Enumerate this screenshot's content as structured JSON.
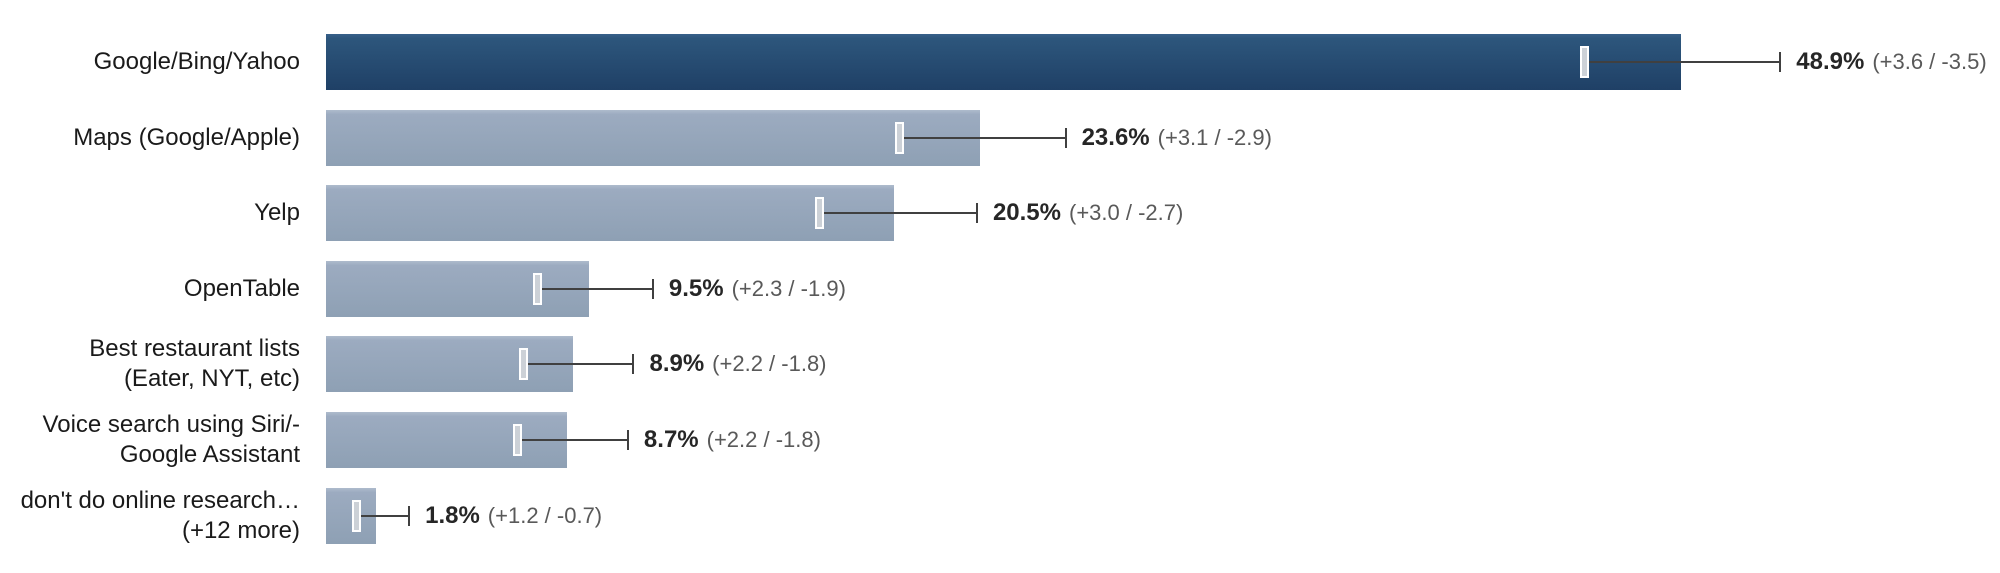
{
  "chart_data": {
    "type": "bar",
    "orientation": "horizontal",
    "title": "",
    "xlabel": "",
    "ylabel": "",
    "xlim": [
      0,
      60.5
    ],
    "grid": false,
    "legend": false,
    "units": "%",
    "categories": [
      "Google/Bing/Yahoo",
      "Maps (Google/Apple)",
      "Yelp",
      "OpenTable",
      "Best restaurant lists (Eater, NYT, etc)",
      "Voice search using Siri/- Google Assistant",
      "don't do online research… (+12 more)"
    ],
    "values": [
      48.9,
      23.6,
      20.5,
      9.5,
      8.9,
      8.7,
      1.8
    ],
    "error_plus": [
      3.6,
      3.1,
      3.0,
      2.3,
      2.2,
      2.2,
      1.2
    ],
    "error_minus": [
      3.5,
      2.9,
      2.7,
      1.9,
      1.8,
      1.8,
      0.7
    ],
    "rows": [
      {
        "label_lines": [
          "Google/Bing/Yahoo"
        ],
        "value": 48.9,
        "plus": 3.6,
        "minus": 3.5,
        "value_label": "48.9%",
        "ci_label": "(+3.6 / -3.5)",
        "emphasis": "primary"
      },
      {
        "label_lines": [
          "Maps (Google/Apple)"
        ],
        "value": 23.6,
        "plus": 3.1,
        "minus": 2.9,
        "value_label": "23.6%",
        "ci_label": "(+3.1 / -2.9)",
        "emphasis": "secondary"
      },
      {
        "label_lines": [
          "Yelp"
        ],
        "value": 20.5,
        "plus": 3.0,
        "minus": 2.7,
        "value_label": "20.5%",
        "ci_label": "(+3.0 / -2.7)",
        "emphasis": "secondary"
      },
      {
        "label_lines": [
          "OpenTable"
        ],
        "value": 9.5,
        "plus": 2.3,
        "minus": 1.9,
        "value_label": "9.5%",
        "ci_label": "(+2.3 / -1.9)",
        "emphasis": "secondary"
      },
      {
        "label_lines": [
          "Best restaurant lists",
          "(Eater, NYT, etc)"
        ],
        "value": 8.9,
        "plus": 2.2,
        "minus": 1.8,
        "value_label": "8.9%",
        "ci_label": "(+2.2 / -1.8)",
        "emphasis": "secondary"
      },
      {
        "label_lines": [
          "Voice search using Siri/-",
          "Google Assistant"
        ],
        "value": 8.7,
        "plus": 2.2,
        "minus": 1.8,
        "value_label": "8.7%",
        "ci_label": "(+2.2 / -1.8)",
        "emphasis": "secondary"
      },
      {
        "label_lines": [
          "don't do online research…",
          "(+12 more)"
        ],
        "value": 1.8,
        "plus": 1.2,
        "minus": 0.7,
        "value_label": "1.8%",
        "ci_label": "(+1.2 / -0.7)",
        "emphasis": "secondary"
      }
    ],
    "colors": {
      "bar_primary_top": "#2d567c",
      "bar_primary_bottom": "#1f4066",
      "bar_secondary_top": "#9cabc0",
      "bar_secondary_bottom": "#8ea0b4",
      "error_line": "#404040",
      "error_cap_low": "#ccd1d7",
      "value_text": "#262626",
      "ci_text": "#595959",
      "label_text": "#1a1a1a"
    }
  }
}
